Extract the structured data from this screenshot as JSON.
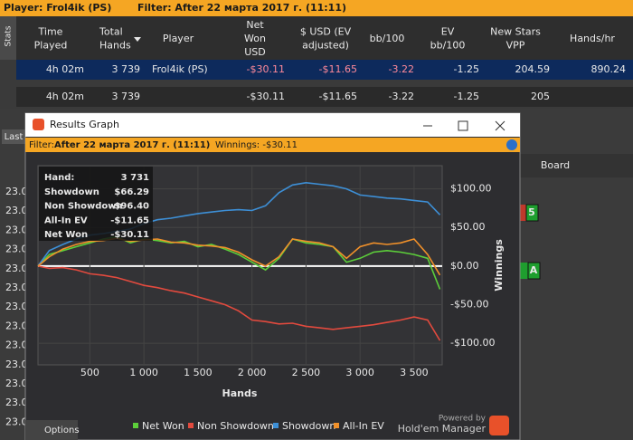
{
  "header": {
    "player": "Player: Frol4ik (PS)",
    "filter": "Filter: After 22 марта 2017 г. (11:11)"
  },
  "stats_tab": "Stats",
  "table": {
    "columns": [
      [
        "Time",
        "Played"
      ],
      [
        "Total",
        "Hands"
      ],
      [
        "Player"
      ],
      [
        "Net",
        "Won",
        "USD"
      ],
      [
        "$ USD (EV",
        "adjusted)"
      ],
      [
        "bb/100"
      ],
      [
        "EV",
        "bb/100"
      ],
      [
        "New Stars",
        "VPP"
      ],
      [
        "Hands/hr"
      ]
    ],
    "rows": [
      [
        "4h 02m",
        "3 739",
        "Frol4ik (PS)",
        "-$30.11",
        "-$11.65",
        "-3.22",
        "-1.25",
        "204.59",
        "890.24"
      ],
      [
        "4h 02m",
        "3 739",
        null,
        "-$30.11",
        "-$11.65",
        "-3.22",
        "-1.25",
        "205",
        null
      ]
    ]
  },
  "background": {
    "last_button": "Last",
    "board": "Board",
    "row_values": [
      "23.0",
      "23.0",
      "23.0",
      "23.0",
      "23.0",
      "23.0",
      "23.0",
      "23.0",
      "23.0",
      "23.0",
      "23.0",
      "23.0",
      "23.0"
    ],
    "cards": [
      "5",
      "A"
    ],
    "options": "Options"
  },
  "window": {
    "title": "Results Graph",
    "filter_label": "Filter:",
    "filter": "After 22 марта 2017 г. (11:11)",
    "winnings": "Winnings: -$30.11",
    "powered_by": "Powered by",
    "brand": "Hold'em Manager"
  },
  "chart_data": {
    "type": "line",
    "x_label": "Hands",
    "y_label": "Winnings",
    "x": [
      20,
      125,
      250,
      375,
      500,
      625,
      750,
      875,
      1000,
      1125,
      1250,
      1375,
      1500,
      1625,
      1750,
      1875,
      2000,
      2125,
      2250,
      2375,
      2500,
      2625,
      2750,
      2875,
      3000,
      3125,
      3250,
      3375,
      3500,
      3625,
      3739
    ],
    "series": [
      {
        "name": "Net Won",
        "color": "#5ccf3a",
        "values": [
          0,
          15,
          20,
          25,
          30,
          35,
          38,
          30,
          35,
          33,
          30,
          32,
          25,
          28,
          22,
          15,
          5,
          -5,
          10,
          35,
          30,
          28,
          25,
          5,
          10,
          18,
          20,
          18,
          15,
          10,
          -30.11
        ]
      },
      {
        "name": "Non Showdown",
        "color": "#e24a3e",
        "values": [
          0,
          -3,
          -2,
          -5,
          -10,
          -12,
          -15,
          -20,
          -25,
          -28,
          -32,
          -35,
          -40,
          -45,
          -50,
          -58,
          -70,
          -72,
          -75,
          -74,
          -78,
          -80,
          -82,
          -80,
          -78,
          -76,
          -73,
          -70,
          -66,
          -70,
          -96.4
        ]
      },
      {
        "name": "Showdown",
        "color": "#3d8fd6",
        "values": [
          0,
          20,
          28,
          35,
          40,
          42,
          45,
          48,
          55,
          60,
          62,
          65,
          68,
          70,
          72,
          73,
          72,
          78,
          95,
          105,
          108,
          106,
          104,
          100,
          92,
          90,
          88,
          87,
          85,
          83,
          66.29
        ]
      },
      {
        "name": "All-In EV",
        "color": "#f0902a",
        "values": [
          0,
          12,
          22,
          28,
          32,
          33,
          36,
          32,
          34,
          35,
          31,
          30,
          27,
          26,
          24,
          18,
          8,
          0,
          12,
          35,
          32,
          30,
          25,
          10,
          25,
          30,
          28,
          30,
          35,
          15,
          -11.65
        ]
      }
    ],
    "xlim": [
      20,
      3760
    ],
    "ylim": [
      -128,
      130
    ],
    "xticks": [
      500,
      {
        "value": 1000,
        "label": "1 000"
      },
      {
        "value": 1500,
        "label": "1 500"
      },
      {
        "value": 2000,
        "label": "2 000"
      },
      {
        "value": 2500,
        "label": "2 500"
      },
      {
        "value": 3000,
        "label": "3 000"
      },
      {
        "value": 3500,
        "label": "3 500"
      }
    ],
    "yticks": [
      {
        "value": -100,
        "label": "-$100.00"
      },
      {
        "value": -50,
        "label": "-$50.00"
      },
      {
        "value": 0,
        "label": "$0.00"
      },
      {
        "value": 50,
        "label": "$50.00"
      },
      {
        "value": 100,
        "label": "$100.00"
      }
    ],
    "grid": true,
    "tooltip": [
      [
        "Hand:",
        "3 731"
      ],
      [
        "Showdown",
        "$66.29"
      ],
      [
        "Non Showdown",
        "-$96.40"
      ],
      [
        "All-In EV",
        "-$11.65"
      ],
      [
        "Net Won",
        "-$30.11"
      ]
    ]
  }
}
